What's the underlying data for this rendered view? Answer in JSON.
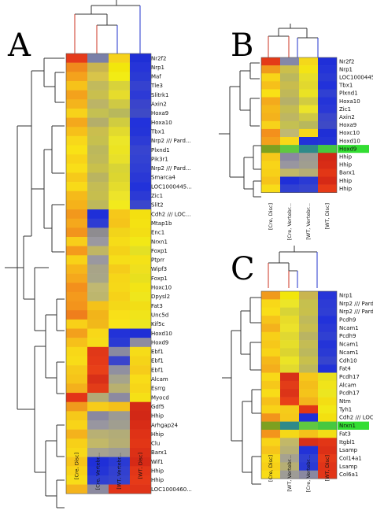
{
  "panels": [
    {
      "letter": "A",
      "columns": [
        "[Cre, Disc]",
        "[Cre, Vertebr...",
        "[WT, Vertebr...",
        "[WT, Disc]"
      ],
      "genes": [
        "Nr2f2",
        "Nrp1",
        "Maf",
        "Tle3",
        "Slitrk1",
        "Axin2",
        "Hoxa9",
        "Hoxa10",
        "Tbx1",
        "Nrp2 /// Pard...",
        "Plxnd1",
        "Pik3r1",
        "Nrp2 /// Pard...",
        "Smarca4",
        "LOC1000445...",
        "Zic1",
        "Slit2",
        "Cdh2 /// LOC...",
        "Mtap1b",
        "Enc1",
        "Nrxn1",
        "Foxp1",
        "Ptprr",
        "Wipf3",
        "Foxp1",
        "Hoxc10",
        "Dpysl2",
        "Fat3",
        "Unc5d",
        "Kif5c",
        "Hoxd10",
        "Hoxd9",
        "Ebf1",
        "Ebf1",
        "Ebf1",
        "Alcam",
        "Esrrg",
        "Myocd",
        "Gdf5",
        "Hhip",
        "Arhgap24",
        "Hhip",
        "Clu",
        "Barx1",
        "Wif1",
        "Hhip",
        "Hhip",
        "LOC1000460..."
      ],
      "highlighted": [],
      "colors": [
        [
          "#e53a1a",
          "#7a7fa8",
          "#f6d21c",
          "#1f2fd6"
        ],
        [
          "#f08a1c",
          "#c9b550",
          "#f2e60c",
          "#2634d8"
        ],
        [
          "#f4a21c",
          "#d8c44a",
          "#f2ec14",
          "#2a3ad4"
        ],
        [
          "#f6c21a",
          "#c2ba5c",
          "#d8d23a",
          "#3542cf"
        ],
        [
          "#f3a21c",
          "#c9bf4e",
          "#e6dc2c",
          "#2d3ad6"
        ],
        [
          "#f4b41c",
          "#bcb466",
          "#cfc944",
          "#3a44cb"
        ],
        [
          "#f7d21a",
          "#c4c052",
          "#b8b85c",
          "#3e4ac6"
        ],
        [
          "#f4a81c",
          "#b4ae6a",
          "#d0cc40",
          "#2232db"
        ],
        [
          "#f6c01a",
          "#cabe4e",
          "#e2da2e",
          "#2434d8"
        ],
        [
          "#f8d81a",
          "#c6c04e",
          "#ece628",
          "#2d3bd5"
        ],
        [
          "#f9e216",
          "#bcb85c",
          "#ece422",
          "#3744d0"
        ],
        [
          "#f8d418",
          "#c0ba58",
          "#e8e02a",
          "#3342d2"
        ],
        [
          "#f9de18",
          "#c8c04c",
          "#d8d436",
          "#2f3ed4"
        ],
        [
          "#f6ca1a",
          "#bab460",
          "#dcd630",
          "#2a38d6"
        ],
        [
          "#f8da18",
          "#c4bc54",
          "#e4dc2c",
          "#2232da"
        ],
        [
          "#f5ba1a",
          "#c6be4e",
          "#ede42a",
          "#2c3ad5"
        ],
        [
          "#f5b21a",
          "#beb85a",
          "#f2ea1c",
          "#3a46cc"
        ],
        [
          "#f2981c",
          "#1f2fd8",
          "#f6c81a",
          "#f3e010"
        ],
        [
          "#f5a81c",
          "#2d3cd3",
          "#f5c41a",
          "#f4e212"
        ],
        [
          "#f2941c",
          "#8e8c90",
          "#f2d41a",
          "#f3de14"
        ],
        [
          "#f8ce1a",
          "#9a98a0",
          "#f6dc18",
          "#f2e816"
        ],
        [
          "#f49a1c",
          "#c0b664",
          "#f4d218",
          "#e4e024"
        ],
        [
          "#f8d218",
          "#9a98a0",
          "#f6de18",
          "#f4e218"
        ],
        [
          "#f6b61a",
          "#a8a488",
          "#f5cc1a",
          "#efe01e"
        ],
        [
          "#f5a81c",
          "#a8a688",
          "#f6d618",
          "#e8e01e"
        ],
        [
          "#f3901c",
          "#c0b872",
          "#f6d818",
          "#f2e416"
        ],
        [
          "#f49a1c",
          "#bdb66e",
          "#f6d218",
          "#efe61c"
        ],
        [
          "#f3941c",
          "#f4c21a",
          "#f4d818",
          "#f2de16"
        ],
        [
          "#ef7e1c",
          "#f2b41a",
          "#f8e018",
          "#f0e41a"
        ],
        [
          "#f8d018",
          "#f1b81a",
          "#f8e418",
          "#ece620"
        ],
        [
          "#f3a01c",
          "#f8d818",
          "#2232d8",
          "#1f2fd6"
        ],
        [
          "#f6c01a",
          "#f6dc18",
          "#2a3ad4",
          "#8e8ca0"
        ],
        [
          "#f8d818",
          "#e03818",
          "#8a8aa0",
          "#f6dc18"
        ],
        [
          "#f8dc18",
          "#e43a18",
          "#3a44cc",
          "#f5d418"
        ],
        [
          "#f6ca1a",
          "#e84018",
          "#9090a0",
          "#f6cc1a"
        ],
        [
          "#f6c41a",
          "#d83018",
          "#a6a48c",
          "#f8dc18"
        ],
        [
          "#f4b01c",
          "#e23c18",
          "#b8b070",
          "#f7d618"
        ],
        [
          "#e33418",
          "#b2aa76",
          "#8c8aa0",
          "#f5e016"
        ],
        [
          "#f09a1c",
          "#f6cc1a",
          "#f4c01a",
          "#d42a16"
        ],
        [
          "#f6c81a",
          "#8a88a0",
          "#9c9a94",
          "#d22816"
        ],
        [
          "#f8d418",
          "#9896a0",
          "#a09e90",
          "#d82c16"
        ],
        [
          "#f4b21c",
          "#b8b074",
          "#b2ac78",
          "#df3216"
        ],
        [
          "#f7d018",
          "#c2b868",
          "#b6ae74",
          "#e23616"
        ],
        [
          "#f8d818",
          "#a6a290",
          "#9e9c96",
          "#dc3016"
        ],
        [
          "#f6c41a",
          "#1f2fd8",
          "#2a3ad4",
          "#d62a16"
        ],
        [
          "#f8d218",
          "#2434d6",
          "#3240d0",
          "#e23618"
        ],
        [
          "#f8dc18",
          "#3040d2",
          "#3644ce",
          "#e63a18"
        ],
        [
          "#f4b41c",
          "#8c8aa0",
          "#e23418",
          "#e03418"
        ]
      ]
    },
    {
      "letter": "B",
      "columns": [
        "[Cre, Disc]",
        "[Cre, Vertebr...",
        "[WT, Vertebr...",
        "[WT, Disc]"
      ],
      "genes": [
        "Nr2f2",
        "Nrp1",
        "LOC1000445...",
        "Tbx1",
        "Plxnd1",
        "Hoxa10",
        "Zic1",
        "Axin2",
        "Hoxa9",
        "Hoxc10",
        "Hoxd10",
        "Hoxd9",
        "Hhip",
        "Hhip",
        "Barx1",
        "Hhip",
        "Hhip"
      ],
      "highlighted": [
        "Hoxd9"
      ],
      "colors": [
        [
          "#e43a18",
          "#8488a8",
          "#f4d81a",
          "#1f2fd8"
        ],
        [
          "#f09a1c",
          "#cbbf4c",
          "#f3e414",
          "#2434d8"
        ],
        [
          "#f8d418",
          "#bcb85c",
          "#e6de2a",
          "#2a3ad4"
        ],
        [
          "#f6c01a",
          "#c8bc4e",
          "#e2d82e",
          "#2232da"
        ],
        [
          "#f9e016",
          "#c0b858",
          "#eae224",
          "#3040d2"
        ],
        [
          "#f4aa1c",
          "#b6b068",
          "#d2cc40",
          "#2434d8"
        ],
        [
          "#f5b81a",
          "#c4bc52",
          "#ece42a",
          "#2a38d6"
        ],
        [
          "#f4b21c",
          "#beb662",
          "#cfc944",
          "#3a46cc"
        ],
        [
          "#f7d21a",
          "#c4c052",
          "#b8b85c",
          "#3e4ac6"
        ],
        [
          "#f3901c",
          "#c0b872",
          "#f6d818",
          "#1f2fd6"
        ],
        [
          "#f3a01c",
          "#f8d818",
          "#2232d8",
          "#2434d6"
        ],
        [
          "#7da020",
          "#60c840",
          "#2e8a8a",
          "#46c840"
        ],
        [
          "#f6c81a",
          "#8a88a0",
          "#9c9a94",
          "#d22816"
        ],
        [
          "#f8d418",
          "#9896a0",
          "#a09e90",
          "#d82c16"
        ],
        [
          "#f7d018",
          "#c2b868",
          "#b6ae74",
          "#e23616"
        ],
        [
          "#f6c41a",
          "#1f2fd8",
          "#2a3ad4",
          "#d62a16"
        ],
        [
          "#f8dc18",
          "#3040d2",
          "#3644ce",
          "#e63a18"
        ]
      ]
    },
    {
      "letter": "C",
      "columns": [
        "[Cre, Disc]",
        "[WT, Vertebr...",
        "[Cre, Vertebr...",
        "[WT, Disc]"
      ],
      "genes": [
        "Nrp1",
        "Nrp2 /// Pard...",
        "Nrp2 /// Pard...",
        "Pcdh9",
        "Ncam1",
        "Pcdh9",
        "Ncam1",
        "Ncam1",
        "Cdh10",
        "Fat4",
        "Pcdh17",
        "Alcam",
        "Pcdh17",
        "Ntm",
        "Tyh1",
        "Cdh2 /// LOC...",
        "Nrxn1",
        "Fat3",
        "Itgbl1",
        "Lsamp",
        "Col14a1",
        "Lsamp",
        "Col6a1"
      ],
      "highlighted": [
        "Nrxn1"
      ],
      "colors": [
        [
          "#f09a1c",
          "#f2e60c",
          "#c9b550",
          "#2634d8"
        ],
        [
          "#f8d818",
          "#ece628",
          "#c6c04e",
          "#2d3bd5"
        ],
        [
          "#f9de18",
          "#d8d436",
          "#c8c04c",
          "#2f3ed4"
        ],
        [
          "#f6c41a",
          "#e8dc2a",
          "#c0ba5a",
          "#2232da"
        ],
        [
          "#f4b21c",
          "#ece22a",
          "#c8be50",
          "#2a38d6"
        ],
        [
          "#f7d018",
          "#e0d832",
          "#bab462",
          "#3040d2"
        ],
        [
          "#f6c81a",
          "#e6de2a",
          "#c4bc54",
          "#2434d8"
        ],
        [
          "#f8d418",
          "#dcd430",
          "#bcb85c",
          "#2a3ad4"
        ],
        [
          "#f5b81a",
          "#ebe426",
          "#c8c04c",
          "#3644ce"
        ],
        [
          "#f4ae1c",
          "#e2da2e",
          "#beb85a",
          "#2232d8"
        ],
        [
          "#f8d818",
          "#d83018",
          "#f6c81a",
          "#e8e01e"
        ],
        [
          "#f6c81a",
          "#e23c18",
          "#f4be1a",
          "#f0e41a"
        ],
        [
          "#f8dc18",
          "#dc3418",
          "#f5c41a",
          "#ece620"
        ],
        [
          "#f6c01a",
          "#e84018",
          "#f3b41c",
          "#f3de14"
        ],
        [
          "#f8d218",
          "#f5cc1a",
          "#e23616",
          "#f2e816"
        ],
        [
          "#f2941c",
          "#f6c81a",
          "#1f2fd8",
          "#f3e010"
        ],
        [
          "#7da020",
          "#2e8a8a",
          "#60c840",
          "#46c840"
        ],
        [
          "#f3941c",
          "#f4d818",
          "#f4c21a",
          "#f2de16"
        ],
        [
          "#f8d418",
          "#c2b868",
          "#d83018",
          "#e23616"
        ],
        [
          "#f6c41a",
          "#b8b074",
          "#2232d8",
          "#dc3016"
        ],
        [
          "#f8d818",
          "#a6a290",
          "#3040d2",
          "#e63a18"
        ],
        [
          "#f7d018",
          "#b6ae74",
          "#2a3ad4",
          "#e03418"
        ],
        [
          "#f8dc18",
          "#9e9c96",
          "#8a88a0",
          "#e23618"
        ]
      ]
    }
  ]
}
